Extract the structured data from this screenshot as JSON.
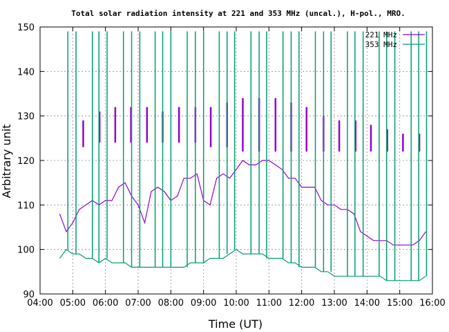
{
  "chart_data": {
    "type": "line",
    "title": "Total solar radiation intensity at 221 and 353 MHz (uncal.), H-pol., MRO.",
    "xlabel": "Time (UT)",
    "ylabel": "Arbitrary unit",
    "x_ticks": [
      "04:00",
      "05:00",
      "06:00",
      "07:00",
      "08:00",
      "09:00",
      "10:00",
      "11:00",
      "12:00",
      "13:00",
      "14:00",
      "15:00",
      "16:00"
    ],
    "y_ticks": [
      90,
      100,
      110,
      120,
      130,
      140,
      150
    ],
    "xlim_hours": [
      4,
      16
    ],
    "ylim": [
      90,
      150
    ],
    "grid": true,
    "legend_position": "top-right",
    "series": [
      {
        "name": "221 MHz",
        "color": "#9400d3",
        "x_hours": [
          4.6,
          4.8,
          5.0,
          5.2,
          5.4,
          5.6,
          5.8,
          6.0,
          6.2,
          6.4,
          6.6,
          6.8,
          7.0,
          7.2,
          7.4,
          7.6,
          7.8,
          8.0,
          8.2,
          8.4,
          8.6,
          8.8,
          9.0,
          9.2,
          9.4,
          9.6,
          9.8,
          10.0,
          10.2,
          10.4,
          10.6,
          10.8,
          11.0,
          11.2,
          11.4,
          11.6,
          11.8,
          12.0,
          12.2,
          12.4,
          12.6,
          12.8,
          13.0,
          13.2,
          13.4,
          13.6,
          13.8,
          14.0,
          14.2,
          14.4,
          14.6,
          14.8,
          15.0,
          15.2,
          15.4,
          15.6,
          15.8
        ],
        "values": [
          108,
          104,
          106,
          109,
          110,
          111,
          110,
          111,
          111,
          114,
          115,
          112,
          110,
          106,
          113,
          114,
          113,
          111,
          112,
          116,
          116,
          117,
          111,
          110,
          116,
          117,
          116,
          118,
          120,
          119,
          119,
          120,
          120,
          119,
          118,
          116,
          116,
          114,
          114,
          114,
          111,
          110,
          110,
          109,
          109,
          108,
          104,
          103,
          102,
          102,
          102,
          101,
          101,
          101,
          101,
          102,
          104
        ],
        "spikes": [
          {
            "x_hours": 5.32,
            "low": 123,
            "high": 129
          },
          {
            "x_hours": 5.82,
            "low": 124,
            "high": 131
          },
          {
            "x_hours": 6.3,
            "low": 124,
            "high": 132
          },
          {
            "x_hours": 6.78,
            "low": 124,
            "high": 132
          },
          {
            "x_hours": 7.27,
            "low": 124,
            "high": 132
          },
          {
            "x_hours": 7.75,
            "low": 124,
            "high": 131
          },
          {
            "x_hours": 8.25,
            "low": 124,
            "high": 132
          },
          {
            "x_hours": 8.75,
            "low": 124,
            "high": 132
          },
          {
            "x_hours": 9.22,
            "low": 123,
            "high": 132
          },
          {
            "x_hours": 9.72,
            "low": 123,
            "high": 133
          },
          {
            "x_hours": 10.2,
            "low": 122,
            "high": 134
          },
          {
            "x_hours": 10.7,
            "low": 122,
            "high": 134
          },
          {
            "x_hours": 11.2,
            "low": 122,
            "high": 134
          },
          {
            "x_hours": 11.68,
            "low": 122,
            "high": 133
          },
          {
            "x_hours": 12.15,
            "low": 122,
            "high": 132
          },
          {
            "x_hours": 12.67,
            "low": 122,
            "high": 130
          },
          {
            "x_hours": 13.15,
            "low": 122,
            "high": 129
          },
          {
            "x_hours": 13.65,
            "low": 122,
            "high": 129
          },
          {
            "x_hours": 14.12,
            "low": 122,
            "high": 128
          },
          {
            "x_hours": 14.62,
            "low": 122,
            "high": 127
          },
          {
            "x_hours": 15.1,
            "low": 122,
            "high": 126
          },
          {
            "x_hours": 15.6,
            "low": 122,
            "high": 126
          }
        ]
      },
      {
        "name": "353 MHz",
        "color": "#009e73",
        "x_hours": [
          4.6,
          4.8,
          5.0,
          5.2,
          5.4,
          5.6,
          5.8,
          6.0,
          6.2,
          6.4,
          6.6,
          6.8,
          7.0,
          7.2,
          7.4,
          7.6,
          7.8,
          8.0,
          8.2,
          8.4,
          8.6,
          8.8,
          9.0,
          9.2,
          9.4,
          9.6,
          9.8,
          10.0,
          10.2,
          10.4,
          10.6,
          10.8,
          11.0,
          11.2,
          11.4,
          11.6,
          11.8,
          12.0,
          12.2,
          12.4,
          12.6,
          12.8,
          13.0,
          13.2,
          13.4,
          13.6,
          13.8,
          14.0,
          14.2,
          14.4,
          14.6,
          14.8,
          15.0,
          15.2,
          15.4,
          15.6,
          15.8
        ],
        "values": [
          98,
          100,
          99,
          99,
          98,
          98,
          97,
          98,
          97,
          97,
          97,
          96,
          96,
          96,
          96,
          96,
          96,
          96,
          96,
          96,
          97,
          97,
          97,
          98,
          98,
          98,
          99,
          100,
          99,
          99,
          99,
          99,
          98,
          98,
          98,
          97,
          97,
          96,
          96,
          96,
          95,
          95,
          94,
          94,
          94,
          94,
          94,
          94,
          94,
          94,
          93,
          93,
          93,
          93,
          93,
          93,
          94
        ],
        "spikes": [
          {
            "x_hours": 4.85,
            "high": 149
          },
          {
            "x_hours": 5.1,
            "high": 149
          },
          {
            "x_hours": 5.6,
            "high": 149
          },
          {
            "x_hours": 5.8,
            "high": 149
          },
          {
            "x_hours": 6.05,
            "high": 149
          },
          {
            "x_hours": 6.55,
            "high": 149
          },
          {
            "x_hours": 6.8,
            "high": 149
          },
          {
            "x_hours": 7.05,
            "high": 149
          },
          {
            "x_hours": 7.52,
            "high": 149
          },
          {
            "x_hours": 7.75,
            "high": 149
          },
          {
            "x_hours": 8.0,
            "high": 149
          },
          {
            "x_hours": 8.5,
            "high": 149
          },
          {
            "x_hours": 8.75,
            "high": 149
          },
          {
            "x_hours": 9.0,
            "high": 149
          },
          {
            "x_hours": 9.48,
            "high": 149
          },
          {
            "x_hours": 9.72,
            "high": 149
          },
          {
            "x_hours": 9.95,
            "high": 149
          },
          {
            "x_hours": 10.45,
            "high": 149
          },
          {
            "x_hours": 10.7,
            "high": 149
          },
          {
            "x_hours": 10.93,
            "high": 149
          },
          {
            "x_hours": 11.43,
            "high": 149
          },
          {
            "x_hours": 11.68,
            "high": 149
          },
          {
            "x_hours": 11.92,
            "high": 149
          },
          {
            "x_hours": 12.42,
            "high": 149
          },
          {
            "x_hours": 12.67,
            "high": 149
          },
          {
            "x_hours": 12.9,
            "high": 149
          },
          {
            "x_hours": 13.4,
            "high": 149
          },
          {
            "x_hours": 13.63,
            "high": 149
          },
          {
            "x_hours": 13.88,
            "high": 149
          },
          {
            "x_hours": 14.37,
            "high": 149
          },
          {
            "x_hours": 14.6,
            "high": 149
          },
          {
            "x_hours": 14.85,
            "high": 149
          },
          {
            "x_hours": 15.35,
            "high": 149
          },
          {
            "x_hours": 15.58,
            "high": 149
          },
          {
            "x_hours": 15.82,
            "high": 149
          }
        ]
      }
    ]
  }
}
